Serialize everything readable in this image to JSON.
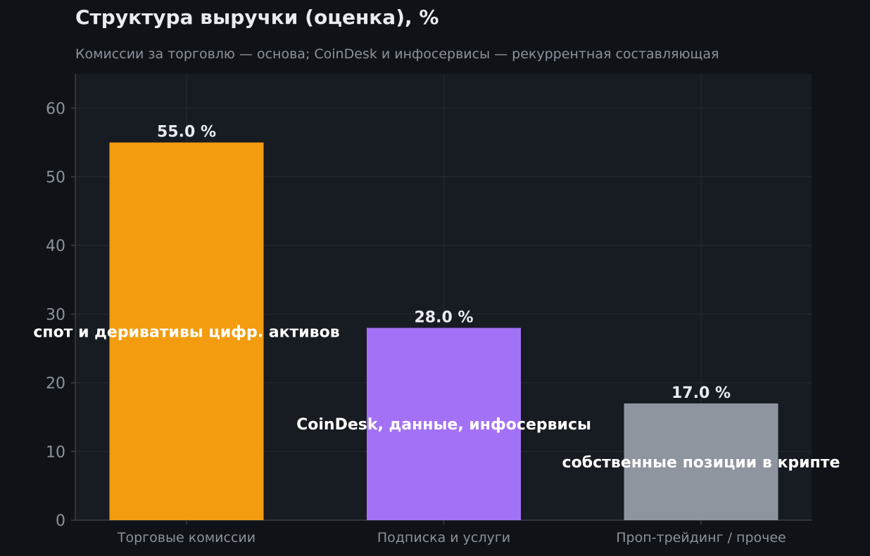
{
  "chart_data": {
    "type": "bar",
    "title": "Структура выручки (оценка), %",
    "subtitle": "Комиссии за торговлю — основа; CoinDesk и инфосервисы — рекуррентная составляющая",
    "xlabel": "",
    "ylabel": "",
    "categories": [
      "Торговые комиссии",
      "Подписка и услуги",
      "Проп-трейдинг / прочее"
    ],
    "values": [
      55.0,
      28.0,
      17.0
    ],
    "value_labels": [
      "55.0 %",
      "28.0 %",
      "17.0 %"
    ],
    "annotations": [
      "спот и деривативы цифр. активов",
      "CoinDesk, данные, инфосервисы",
      "собственные позиции в крипте"
    ],
    "colors": [
      "#f39c0f",
      "#a371f6",
      "#8e959f"
    ],
    "ylim": [
      0,
      65
    ],
    "yticks": [
      0,
      10,
      20,
      30,
      40,
      50,
      60
    ],
    "grid": true,
    "legend": "none",
    "background": "#0f1317",
    "plot_background": "#171b22"
  }
}
